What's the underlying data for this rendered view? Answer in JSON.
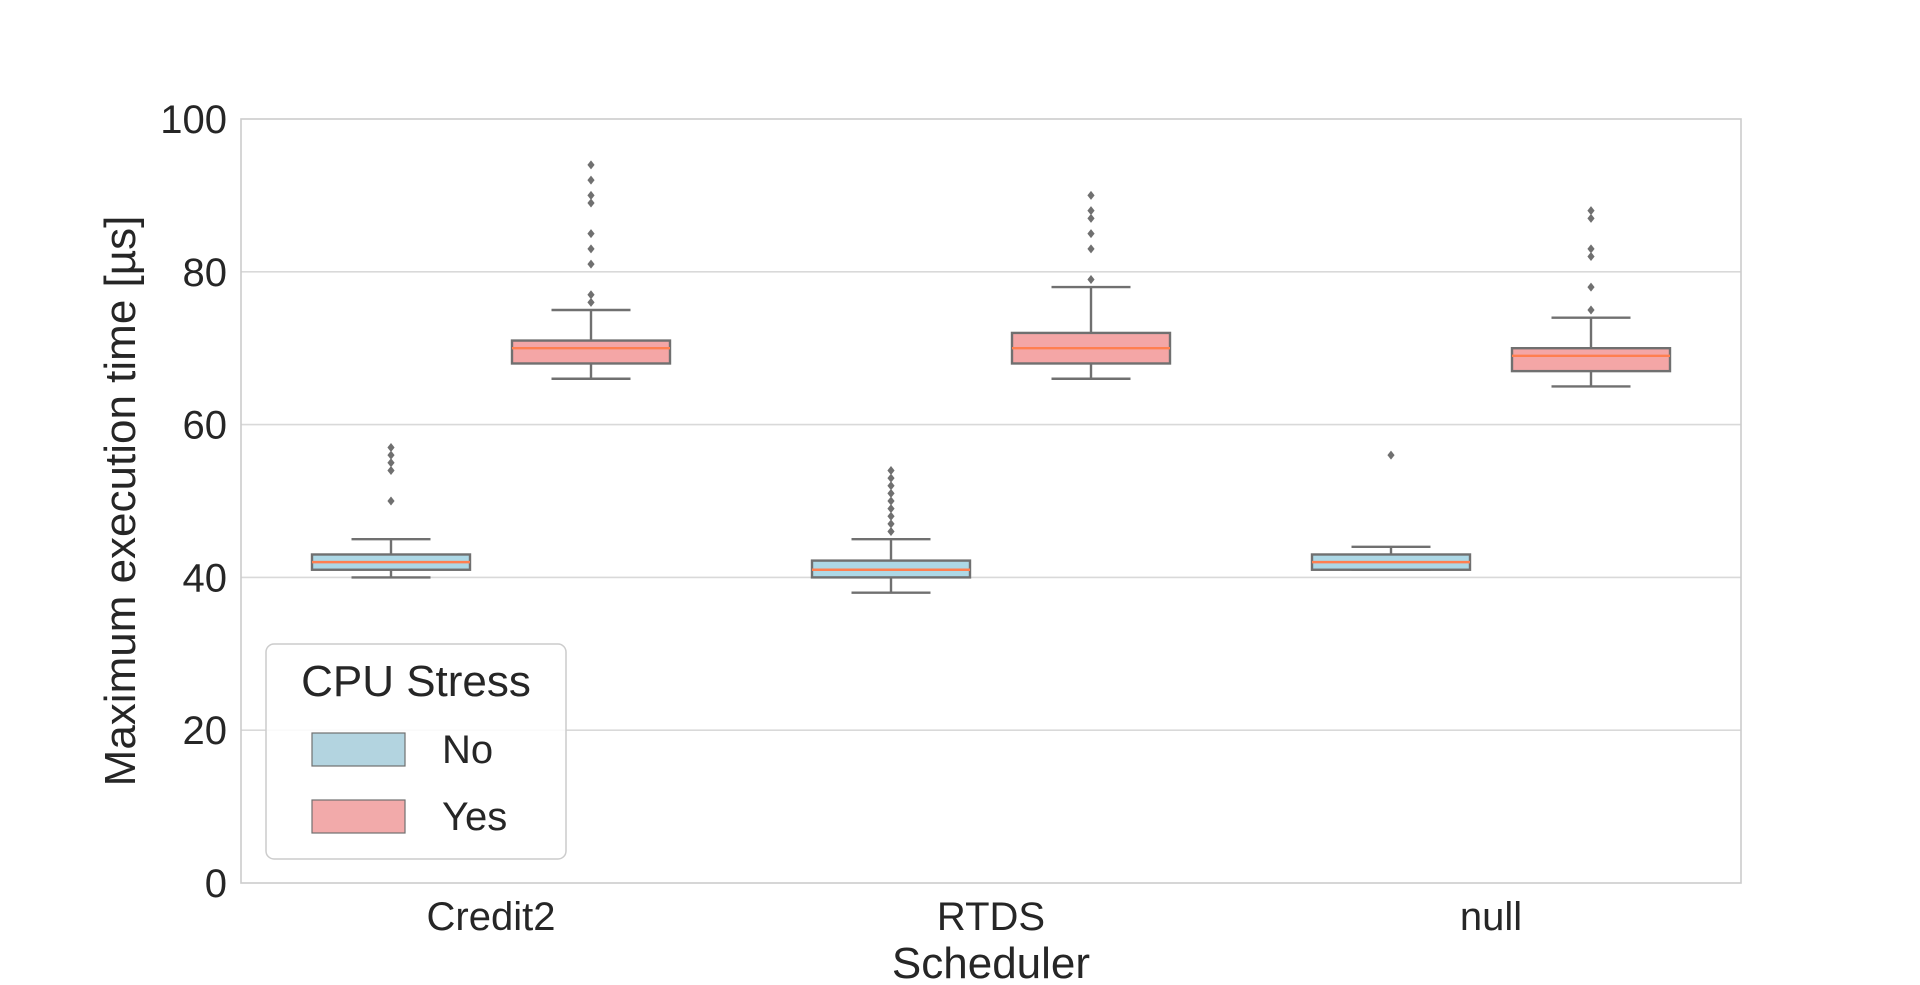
{
  "chart_data": {
    "type": "box",
    "xlabel": "Scheduler",
    "ylabel": "Maximum execution time [µs]",
    "ylim": [
      0,
      100
    ],
    "yticks": [
      "0",
      "20",
      "40",
      "60",
      "80",
      "100"
    ],
    "categories": [
      "Credit2",
      "RTDS",
      "null"
    ],
    "grid": "horizontal",
    "legend": {
      "title": "CPU Stress",
      "placement": "lower-left",
      "entries": [
        "No",
        "Yes"
      ]
    },
    "series": [
      {
        "name": "No",
        "color": "#add8e6",
        "boxes": [
          {
            "q1": 41,
            "median": 42,
            "q3": 43,
            "whisker_low": 40,
            "whisker_high": 45,
            "outliers": [
              50,
              54,
              55,
              56,
              57
            ]
          },
          {
            "q1": 40,
            "median": 41,
            "q3": 42.2,
            "whisker_low": 38,
            "whisker_high": 45,
            "outliers": [
              46,
              47,
              48,
              49,
              50,
              51,
              52,
              53,
              54
            ]
          },
          {
            "q1": 41,
            "median": 42,
            "q3": 43,
            "whisker_low": 41,
            "whisker_high": 44,
            "outliers": [
              56
            ]
          }
        ]
      },
      {
        "name": "Yes",
        "color": "#f4a6a6",
        "boxes": [
          {
            "q1": 68,
            "median": 70,
            "q3": 71,
            "whisker_low": 66,
            "whisker_high": 75,
            "outliers": [
              76,
              77,
              81,
              83,
              85,
              89,
              90,
              92,
              94
            ]
          },
          {
            "q1": 68,
            "median": 70,
            "q3": 72,
            "whisker_low": 66,
            "whisker_high": 78,
            "outliers": [
              79,
              83,
              85,
              87,
              88,
              90
            ]
          },
          {
            "q1": 67,
            "median": 69,
            "q3": 70,
            "whisker_low": 65,
            "whisker_high": 74,
            "outliers": [
              75,
              78,
              82,
              83,
              87,
              88
            ]
          }
        ]
      }
    ],
    "colors": {
      "median": "#ff7f50",
      "box_edge": "#707070",
      "outlier": "#707070",
      "grid": "#d9d9d9",
      "frame": "#cccccc"
    }
  }
}
